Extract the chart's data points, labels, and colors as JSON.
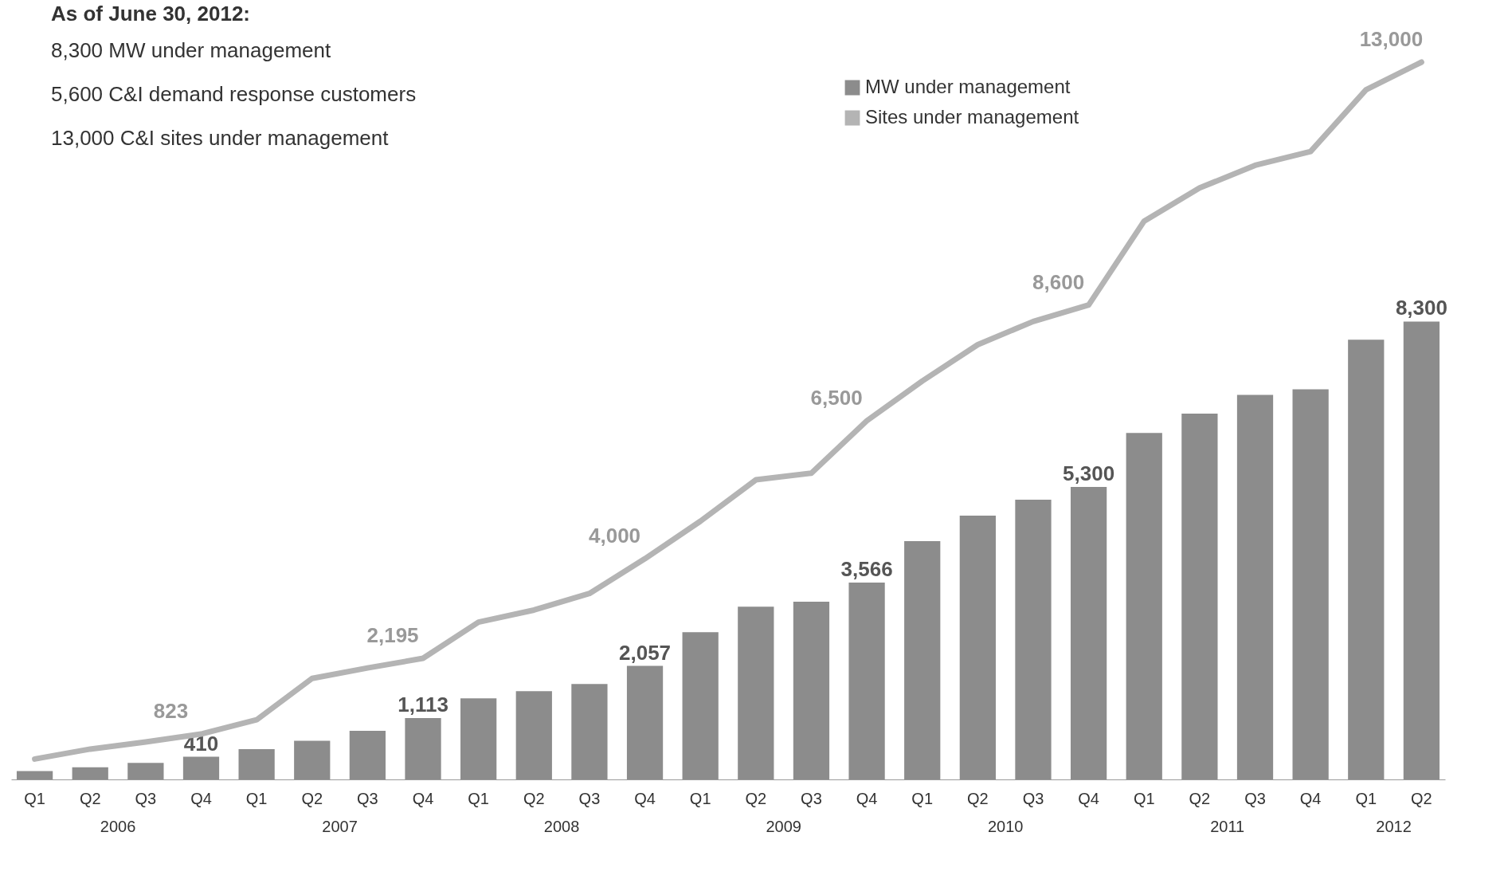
{
  "chart_data": {
    "type": "bar",
    "title": "As of June 30, 2012:",
    "categories": [
      "Q1",
      "Q2",
      "Q3",
      "Q4",
      "Q1",
      "Q2",
      "Q3",
      "Q4",
      "Q1",
      "Q2",
      "Q3",
      "Q4",
      "Q1",
      "Q2",
      "Q3",
      "Q4",
      "Q1",
      "Q2",
      "Q3",
      "Q4",
      "Q1",
      "Q2",
      "Q3",
      "Q4",
      "Q1",
      "Q2"
    ],
    "series": [
      {
        "name": "MW under management",
        "color": "#8c8c8c",
        "values": [
          150,
          220,
          300,
          410,
          550,
          700,
          880,
          1113,
          1470,
          1600,
          1730,
          2057,
          2670,
          3130,
          3220,
          3566,
          4320,
          4780,
          5070,
          5300,
          6280,
          6630,
          6970,
          7070,
          7970,
          8300
        ],
        "value_labels": [
          null,
          null,
          null,
          "410",
          null,
          null,
          null,
          "1,113",
          null,
          null,
          null,
          "2,057",
          null,
          null,
          null,
          "3,566",
          null,
          null,
          null,
          "5,300",
          null,
          null,
          null,
          null,
          null,
          "8,300"
        ]
      },
      {
        "name": "Sites under management",
        "type": "line",
        "color": "#b4b4b4",
        "values": [
          370,
          550,
          680,
          823,
          1080,
          1830,
          2020,
          2195,
          2850,
          3070,
          3370,
          4000,
          4680,
          5430,
          5550,
          6500,
          7220,
          7880,
          8300,
          8600,
          10120,
          10720,
          11130,
          11380,
          12500,
          13000
        ],
        "value_labels": [
          null,
          null,
          null,
          "823",
          null,
          null,
          null,
          "2,195",
          null,
          null,
          null,
          "4,000",
          null,
          null,
          null,
          "6,500",
          null,
          null,
          null,
          "8,600",
          null,
          null,
          null,
          null,
          null,
          "13,000"
        ]
      }
    ],
    "annotations": [
      "8,300 MW under management",
      "5,600 C&I demand response customers",
      "13,000 C&I sites under management",
      "2006",
      "2007",
      "2008",
      "2009",
      "2010",
      "2011",
      "2012"
    ],
    "legend": "top right",
    "grid": false,
    "line_style": "solid",
    "tick_labels": "x"
  }
}
